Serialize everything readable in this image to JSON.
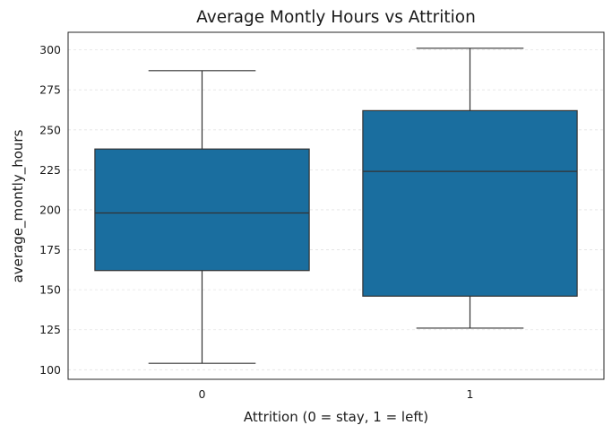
{
  "chart_data": {
    "type": "box",
    "title": "Average Montly Hours vs Attrition",
    "xlabel": "Attrition (0 = stay, 1 = left)",
    "ylabel": "average_montly_hours",
    "categories": [
      "0",
      "1"
    ],
    "ylim": [
      94,
      311
    ],
    "yticks": [
      100,
      125,
      150,
      175,
      200,
      225,
      250,
      275,
      300
    ],
    "grid": true,
    "box_color": "#1a6e9f",
    "series": [
      {
        "category": "0",
        "min": 104,
        "q1": 162,
        "median": 198,
        "q3": 238,
        "max": 287
      },
      {
        "category": "1",
        "min": 126,
        "q1": 146,
        "median": 224,
        "q3": 262,
        "max": 301
      }
    ]
  }
}
